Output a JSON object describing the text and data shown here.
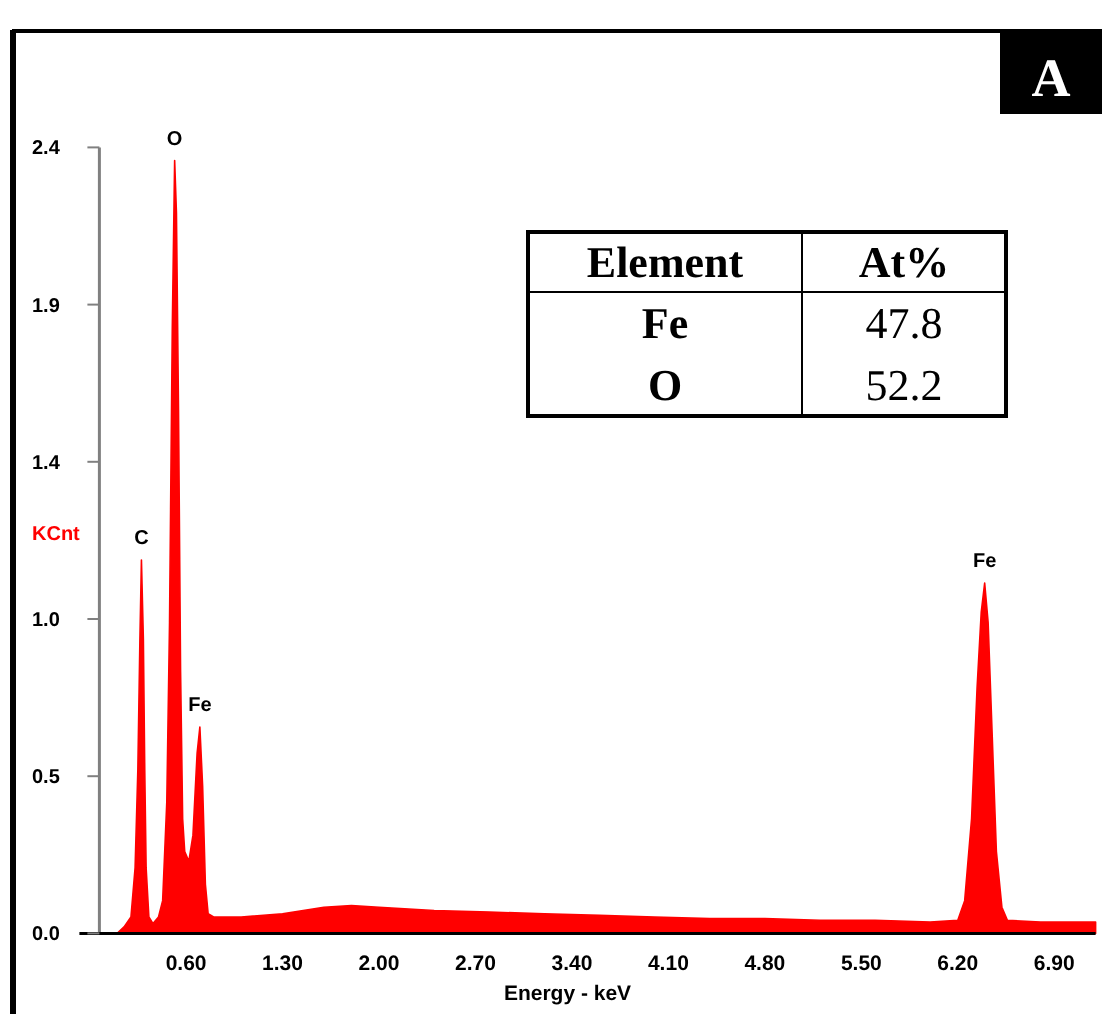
{
  "chart_data": {
    "type": "area",
    "xlabel": "Energy - keV",
    "ylabel": "KCnt",
    "xlim": [
      0,
      7.2
    ],
    "xticks": [
      {
        "value": 0.6,
        "label": "0.60"
      },
      {
        "value": 1.3,
        "label": "1.30"
      },
      {
        "value": 2.0,
        "label": "2.00"
      },
      {
        "value": 2.7,
        "label": "2.70"
      },
      {
        "value": 3.4,
        "label": "3.40"
      },
      {
        "value": 4.1,
        "label": "4.10"
      },
      {
        "value": 4.8,
        "label": "4.80"
      },
      {
        "value": 5.5,
        "label": "5.50"
      },
      {
        "value": 6.2,
        "label": "6.20"
      },
      {
        "value": 6.9,
        "label": "6.90"
      }
    ],
    "ylim": [
      0,
      2.4
    ],
    "yticks": [
      {
        "value": 0,
        "label": "0.0"
      },
      {
        "value": 0.48,
        "label": "0.5"
      },
      {
        "value": 0.96,
        "label": "1.0"
      },
      {
        "value": 1.44,
        "label": "1.4"
      },
      {
        "value": 1.92,
        "label": "1.9"
      },
      2.4
    ],
    "grid": false,
    "series": [
      {
        "color": "#ff0000",
        "x": [
          0.1,
          0.15,
          0.2,
          0.23,
          0.25,
          0.265,
          0.276,
          0.29,
          0.3,
          0.31,
          0.33,
          0.36,
          0.4,
          0.43,
          0.46,
          0.48,
          0.5,
          0.517,
          0.53,
          0.545,
          0.56,
          0.575,
          0.59,
          0.62,
          0.65,
          0.68,
          0.7,
          0.72,
          0.74,
          0.76,
          0.8,
          1.0,
          1.3,
          1.6,
          1.8,
          2.0,
          2.4,
          2.8,
          3.2,
          3.6,
          4.0,
          4.4,
          4.8,
          5.2,
          5.6,
          6.0,
          6.2,
          6.25,
          6.3,
          6.34,
          6.37,
          6.395,
          6.42,
          6.45,
          6.48,
          6.52,
          6.56,
          6.8,
          7.2
        ],
        "values": [
          0,
          0.02,
          0.05,
          0.2,
          0.5,
          0.9,
          1.14,
          0.9,
          0.5,
          0.2,
          0.05,
          0.03,
          0.05,
          0.1,
          0.4,
          0.95,
          1.85,
          2.36,
          2.2,
          1.6,
          0.8,
          0.35,
          0.25,
          0.22,
          0.3,
          0.55,
          0.63,
          0.45,
          0.15,
          0.06,
          0.05,
          0.05,
          0.06,
          0.08,
          0.085,
          0.08,
          0.07,
          0.065,
          0.06,
          0.055,
          0.05,
          0.045,
          0.045,
          0.04,
          0.04,
          0.035,
          0.04,
          0.1,
          0.35,
          0.75,
          0.98,
          1.07,
          0.95,
          0.6,
          0.25,
          0.08,
          0.04,
          0.035,
          0.035
        ]
      }
    ],
    "annotations": [
      {
        "text": "C",
        "x": 0.276,
        "y": 1.14
      },
      {
        "text": "O",
        "x": 0.517,
        "y": 2.36
      },
      {
        "text": "Fe",
        "x": 0.7,
        "y": 0.63
      },
      {
        "text": "Fe",
        "x": 6.395,
        "y": 1.07
      },
      "A",
      "Element",
      "At%",
      "Fe",
      "47.8",
      "O",
      "52.2"
    ]
  }
}
